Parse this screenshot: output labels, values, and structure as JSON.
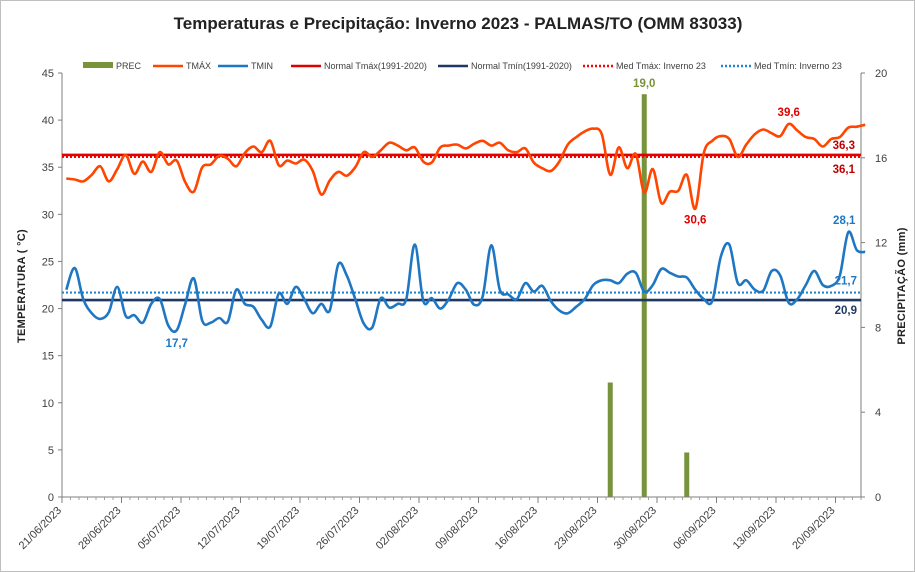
{
  "chart_data": {
    "type": "line",
    "title": "Temperaturas e Precipitação: Inverno 2023 - PALMAS/TO (OMM 83033)",
    "ylabel": "TEMPERATURA ( °C)",
    "y2label": "PRECIPITAÇÃO (mm)",
    "ylim": [
      0,
      45
    ],
    "y2lim": [
      0,
      20
    ],
    "yticks": [
      "0",
      "5",
      "10",
      "15",
      "20",
      "25",
      "30",
      "35",
      "40",
      "45"
    ],
    "y2ticks": [
      "0",
      "4",
      "8",
      "12",
      "16",
      "20"
    ],
    "xticks": [
      "21/06/2023",
      "28/06/2023",
      "05/07/2023",
      "12/07/2023",
      "19/07/2023",
      "26/07/2023",
      "02/08/2023",
      "09/08/2023",
      "16/08/2023",
      "23/08/2023",
      "30/08/2023",
      "06/09/2023",
      "13/09/2023",
      "20/09/2023"
    ],
    "x_days": 94,
    "colors": {
      "prec": "#77933c",
      "tmax": "#ff4500",
      "tmin": "#1f77c4",
      "normal_tmax": "#e00000",
      "normal_tmin": "#1f3864",
      "med_tmax": "#ff0000",
      "med_tmin": "#1f88d0"
    },
    "legend": [
      "PREC",
      "TMÁX",
      "TMIN",
      "Normal Tmáx(1991-2020)",
      "Normal Tmín(1991-2020)",
      "Med Tmáx: Inverno 23",
      "Med Tmín: Inverno 23"
    ],
    "series": [
      {
        "name": "TMÁX",
        "axis": "left",
        "values": [
          33.8,
          33.7,
          33.5,
          34.2,
          35.1,
          33.5,
          34.8,
          36.3,
          34.3,
          35.6,
          34.5,
          36.6,
          35.3,
          35.7,
          33.4,
          32.4,
          35.0,
          35.3,
          36.2,
          35.9,
          35.1,
          36.5,
          37.2,
          36.6,
          37.8,
          35.2,
          35.7,
          35.4,
          35.8,
          34.6,
          32.1,
          33.6,
          34.5,
          34.1,
          35.0,
          36.6,
          36.1,
          36.8,
          37.6,
          37.3,
          36.8,
          37.1,
          35.6,
          35.5,
          37.1,
          37.3,
          37.4,
          37.0,
          37.5,
          37.8,
          37.3,
          37.6,
          36.8,
          36.6,
          37.0,
          35.5,
          34.9,
          34.6,
          35.6,
          37.4,
          38.2,
          38.8,
          39.1,
          38.5,
          34.2,
          37.1,
          34.9,
          36.4,
          32.3,
          34.8,
          31.2,
          32.4,
          32.5,
          34.2,
          30.6,
          36.5,
          37.8,
          38.3,
          38.0,
          36.1,
          37.4,
          38.5,
          39.0,
          38.6,
          38.3,
          39.6,
          38.9,
          38.2,
          38.0,
          37.2,
          38.0,
          38.2,
          39.2,
          39.3,
          39.5
        ]
      },
      {
        "name": "TMIN",
        "axis": "left",
        "values": [
          22.0,
          24.3,
          21.0,
          19.5,
          18.9,
          19.6,
          22.3,
          19.2,
          19.3,
          18.5,
          20.5,
          21.0,
          18.2,
          17.7,
          20.5,
          23.2,
          18.7,
          18.5,
          19.0,
          18.6,
          22.0,
          20.5,
          20.2,
          18.8,
          18.1,
          21.6,
          20.5,
          22.3,
          21.0,
          19.5,
          20.5,
          19.8,
          24.7,
          23.5,
          21.0,
          18.4,
          18.0,
          21.1,
          20.1,
          20.5,
          21.0,
          26.8,
          20.8,
          21.1,
          20.0,
          21.0,
          22.7,
          22.0,
          20.4,
          21.3,
          26.7,
          22.0,
          21.5,
          21.0,
          22.7,
          21.8,
          22.4,
          20.8,
          19.8,
          19.5,
          20.2,
          21.0,
          22.5,
          23.0,
          23.0,
          22.7,
          23.7,
          23.8,
          21.8,
          22.5,
          24.2,
          23.8,
          23.4,
          23.3,
          22.0,
          21.0,
          20.8,
          25.5,
          26.8,
          22.7,
          23.0,
          22.0,
          21.9,
          24.0,
          23.5,
          20.6,
          21.0,
          22.5,
          24.0,
          22.5,
          22.4,
          23.5,
          28.1,
          26.2,
          26.0
        ]
      },
      {
        "name": "PREC",
        "axis": "right",
        "kind": "bar",
        "points": [
          [
            64,
            5.4
          ],
          [
            68,
            19.0
          ],
          [
            73,
            2.1
          ]
        ]
      }
    ],
    "reference_lines": [
      {
        "name": "Normal Tmáx(1991-2020)",
        "value": 36.3
      },
      {
        "name": "Normal Tmín(1991-2020)",
        "value": 20.9
      },
      {
        "name": "Med Tmáx: Inverno 23",
        "value": 36.1
      },
      {
        "name": "Med Tmín: Inverno 23",
        "value": 21.7
      }
    ],
    "annotations": [
      {
        "text": "19,0",
        "series": "PREC"
      },
      {
        "text": "39,6",
        "series": "TMÁX"
      },
      {
        "text": "36,3",
        "series": "Normal Tmáx(1991-2020)"
      },
      {
        "text": "36,1",
        "series": "Med Tmáx: Inverno 23"
      },
      {
        "text": "30,6",
        "series": "TMÁX"
      },
      {
        "text": "28,1",
        "series": "TMIN"
      },
      {
        "text": "21,7",
        "series": "Med Tmín: Inverno 23"
      },
      {
        "text": "20,9",
        "series": "Normal Tmín(1991-2020)"
      },
      {
        "text": "17,7",
        "series": "TMIN"
      }
    ]
  }
}
